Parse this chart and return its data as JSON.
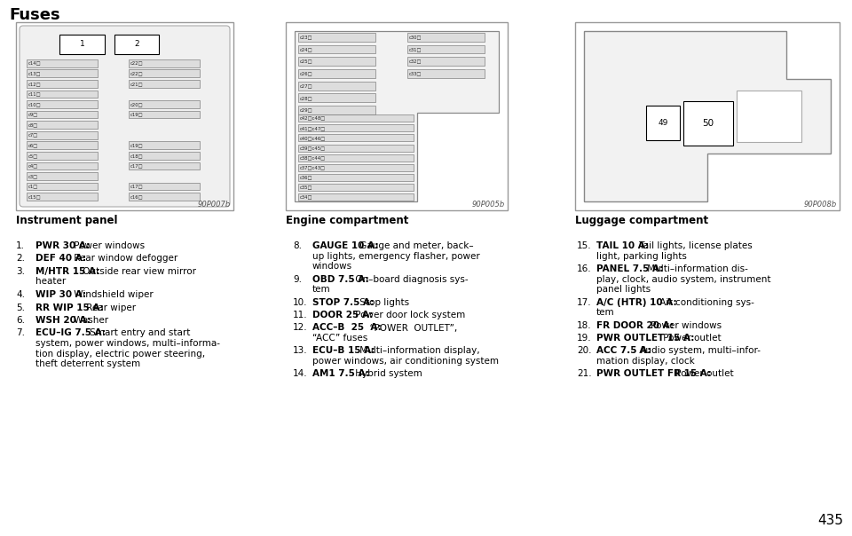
{
  "title": "Fuses",
  "page_number": "435",
  "bg_color": "#ffffff",
  "diagram_labels": [
    "Instrument panel",
    "Engine compartment",
    "Luggage compartment"
  ],
  "diagram_codes": [
    "90P007b",
    "90P005b",
    "90P008b"
  ],
  "col1_items": [
    {
      "num": "1.",
      "bold": "PWR 30 A:",
      "text": " Power windows"
    },
    {
      "num": "2.",
      "bold": "DEF 40 A:",
      "text": " Rear window defogger"
    },
    {
      "num": "3.",
      "bold": "M/HTR 15 A:",
      "text": " Outside rear view mirror\n    heater"
    },
    {
      "num": "4.",
      "bold": "WIP 30 A:",
      "text": " Windshield wiper"
    },
    {
      "num": "5.",
      "bold": "RR WIP 15 A:",
      "text": " Rear wiper"
    },
    {
      "num": "6.",
      "bold": "WSH 20 A:",
      "text": " Washer"
    },
    {
      "num": "7.",
      "bold": "ECU–IG 7.5 A:",
      "text": " Smart entry and start\n    system, power windows, multi–informa-\n    tion display, electric power steering,\n    theft deterrent system"
    }
  ],
  "col2_items": [
    {
      "num": "8.",
      "bold": "GAUGE 10 A:",
      "text": " Gauge and meter, back–\n    up lights, emergency flasher, power\n    windows"
    },
    {
      "num": "9.",
      "bold": "OBD 7.5 A:",
      "text": " On–board diagnosis sys-\n    tem"
    },
    {
      "num": "10.",
      "bold": "STOP 7.5 A:",
      "text": " Stop lights"
    },
    {
      "num": "11.",
      "bold": "DOOR 25 A:",
      "text": " Power door lock system"
    },
    {
      "num": "12.",
      "bold": "ACC–B  25  A:",
      "text": "  “POWER  OUTLET”,\n    “ACC” fuses"
    },
    {
      "num": "13.",
      "bold": "ECU–B 15 A:",
      "text": " Multi–information display,\n    power windows, air conditioning system"
    },
    {
      "num": "14.",
      "bold": "AM1 7.5 A:",
      "text": " Hybrid system"
    }
  ],
  "col3_items": [
    {
      "num": "15.",
      "bold": "TAIL 10 A:",
      "text": " Tail lights, license plates\n    light, parking lights"
    },
    {
      "num": "16.",
      "bold": "PANEL 7.5 A:",
      "text": " Multi–information dis-\n    play, clock, audio system, instrument\n    panel lights"
    },
    {
      "num": "17.",
      "bold": "A/C (HTR) 10 A:",
      "text": " Air conditioning sys-\n    tem"
    },
    {
      "num": "18.",
      "bold": "FR DOOR 20 A:",
      "text": " Power windows"
    },
    {
      "num": "19.",
      "bold": "PWR OUTLET 15 A:",
      "text": " Power outlet"
    },
    {
      "num": "20.",
      "bold": "ACC 7.5 A:",
      "text": " Audio system, multi–infor-\n    mation display, clock"
    },
    {
      "num": "21.",
      "bold": "PWR OUTLET FR 15 A:",
      "text": " Power outlet"
    }
  ],
  "inst_fuse_rows": [
    [
      "c15□",
      "c16□"
    ],
    [
      "c1□",
      "c17□"
    ],
    [
      "c3□",
      ""
    ],
    [
      "c4□",
      "c17□"
    ],
    [
      "c5□",
      "c18□"
    ],
    [
      "c6□",
      "c19□"
    ],
    [
      "c7□",
      ""
    ],
    [
      "c8□",
      ""
    ],
    [
      "c9□",
      "c19□"
    ],
    [
      "c10□",
      "c20□"
    ],
    [
      "c11□",
      ""
    ],
    [
      "c12□",
      "c21□"
    ],
    [
      "c13□",
      "c22□"
    ],
    [
      "c14□",
      "c22□"
    ]
  ],
  "eng_top_left": [
    "c23□",
    "c24□",
    "c25□",
    "c26□",
    "c27□",
    "c28□",
    "c29□"
  ],
  "eng_top_right": [
    "c30□",
    "c31□",
    "c32□",
    "c33□"
  ],
  "eng_bot": [
    "c34□",
    "c35□",
    "c36□",
    "c37□c43□",
    "c38□c44□",
    "c39□c45□",
    "c40□c46□",
    "c41□c47□",
    "c42□c48□"
  ]
}
